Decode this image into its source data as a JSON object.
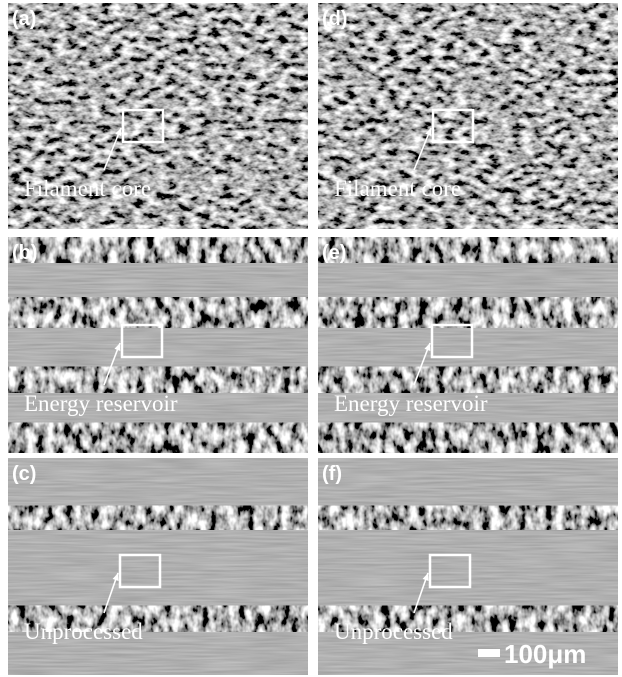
{
  "panels": [
    {
      "label": "(a)",
      "annotation": "Filament core"
    },
    {
      "label": "(b)",
      "annotation": "Energy reservoir"
    },
    {
      "label": "(c)",
      "annotation": "Unprocessed"
    },
    {
      "label": "(d)",
      "annotation": "Filament core"
    },
    {
      "label": "(e)",
      "annotation": "Energy reservoir"
    },
    {
      "label": "(f)",
      "annotation": "Unprocessed"
    }
  ],
  "scale_bar": "100μm"
}
